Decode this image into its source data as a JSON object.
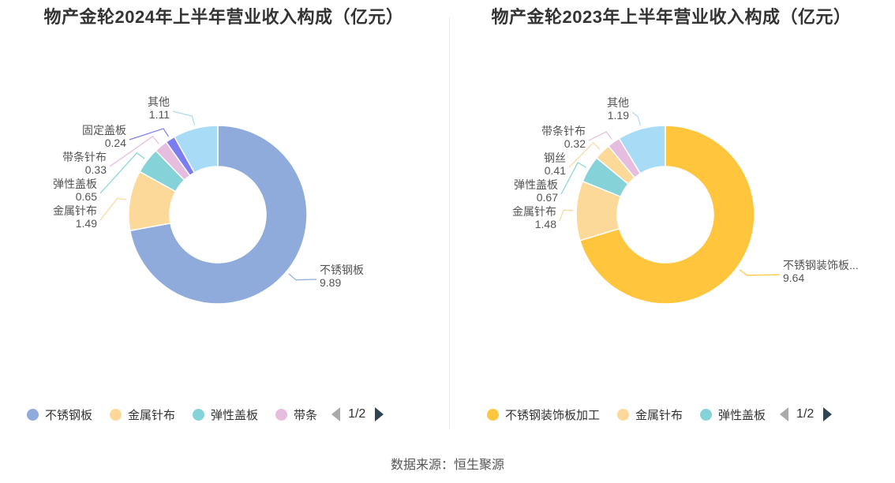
{
  "chart_data": [
    {
      "type": "pie",
      "title": "物产金轮2024年上半年营业收入构成（亿元）",
      "slices": [
        {
          "name": "不锈钢板",
          "label": "不锈钢板",
          "value": 9.89,
          "value_text": "9.89",
          "color": "#8fabdb"
        },
        {
          "name": "金属针布",
          "label": "金属针布",
          "value": 1.49,
          "value_text": "1.49",
          "color": "#fcd899"
        },
        {
          "name": "弹性盖板",
          "label": "弹性盖板",
          "value": 0.65,
          "value_text": "0.65",
          "color": "#85d3d8"
        },
        {
          "name": "带条针布",
          "label": "带条针布",
          "value": 0.33,
          "value_text": "0.33",
          "color": "#e6bcdf"
        },
        {
          "name": "固定盖板",
          "label": "固定盖板",
          "value": 0.24,
          "value_text": "0.24",
          "color": "#7b7cf0"
        },
        {
          "name": "其他",
          "label": "其他",
          "value": 1.11,
          "value_text": "1.11",
          "color": "#a8dcf6"
        }
      ],
      "legend": {
        "items": [
          {
            "label": "不锈钢板",
            "color": "#8fabdb"
          },
          {
            "label": "金属针布",
            "color": "#fcd899"
          },
          {
            "label": "弹性盖板",
            "color": "#85d3d8"
          },
          {
            "label": "带条",
            "color": "#e6bcdf"
          }
        ],
        "page": "1/2",
        "position": "bottom"
      }
    },
    {
      "type": "pie",
      "title": "物产金轮2023年上半年营业收入构成（亿元）",
      "slices": [
        {
          "name": "不锈钢装饰板加工",
          "label": "不锈钢装饰板...",
          "value": 9.64,
          "value_text": "9.64",
          "color": "#fec53d"
        },
        {
          "name": "金属针布",
          "label": "金属针布",
          "value": 1.48,
          "value_text": "1.48",
          "color": "#fcd899"
        },
        {
          "name": "弹性盖板",
          "label": "弹性盖板",
          "value": 0.67,
          "value_text": "0.67",
          "color": "#85d3d8"
        },
        {
          "name": "钢丝",
          "label": "钢丝",
          "value": 0.41,
          "value_text": "0.41",
          "color": "#fcd899"
        },
        {
          "name": "带条针布",
          "label": "带条针布",
          "value": 0.32,
          "value_text": "0.32",
          "color": "#e6bcdf"
        },
        {
          "name": "其他",
          "label": "其他",
          "value": 1.19,
          "value_text": "1.19",
          "color": "#a8dcf6"
        }
      ],
      "legend": {
        "items": [
          {
            "label": "不锈钢装饰板加工",
            "color": "#fec53d"
          },
          {
            "label": "金属针布",
            "color": "#fcd899"
          },
          {
            "label": "弹性盖板",
            "color": "#85d3d8"
          }
        ],
        "page": "1/2",
        "position": "bottom"
      }
    }
  ],
  "footer": {
    "source": "数据来源：恒生聚源"
  }
}
